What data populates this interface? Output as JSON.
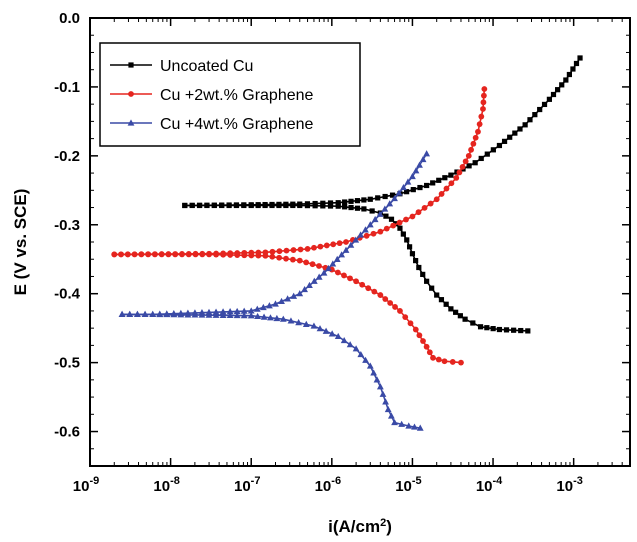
{
  "chart_data": {
    "type": "line",
    "xlabel": "i(A/cm",
    "xlabel_sup": "2",
    "xlabel_tail": ")",
    "ylabel": "E (V vs. SCE)",
    "x_scale": "log",
    "xlim": [
      1e-09,
      0.005
    ],
    "ylim": [
      -0.65,
      0.0
    ],
    "x_ticks": [
      {
        "value": 1e-09,
        "base": "10",
        "exp": "-9"
      },
      {
        "value": 1e-08,
        "base": "10",
        "exp": "-8"
      },
      {
        "value": 1e-07,
        "base": "10",
        "exp": "-7"
      },
      {
        "value": 1e-06,
        "base": "10",
        "exp": "-6"
      },
      {
        "value": 1e-05,
        "base": "10",
        "exp": "-5"
      },
      {
        "value": 0.0001,
        "base": "10",
        "exp": "-4"
      },
      {
        "value": 0.001,
        "base": "10",
        "exp": "-3"
      }
    ],
    "y_ticks": [
      {
        "value": 0.0,
        "label": "0.0"
      },
      {
        "value": -0.1,
        "label": "-0.1"
      },
      {
        "value": -0.2,
        "label": "-0.2"
      },
      {
        "value": -0.3,
        "label": "-0.3"
      },
      {
        "value": -0.4,
        "label": "-0.4"
      },
      {
        "value": -0.5,
        "label": "-0.5"
      },
      {
        "value": -0.6,
        "label": "-0.6"
      }
    ],
    "grid": false,
    "legend_position": "top-left",
    "series": [
      {
        "name": "Uncoated Cu",
        "color": "#000000",
        "marker": "square",
        "cathodic": [
          [
            1.5e-08,
            -0.272
          ],
          [
            1e-07,
            -0.272
          ],
          [
            4e-07,
            -0.272
          ],
          [
            1.2e-06,
            -0.273
          ],
          [
            2.5e-06,
            -0.277
          ],
          [
            4e-06,
            -0.283
          ],
          [
            5.5e-06,
            -0.292
          ],
          [
            7e-06,
            -0.305
          ],
          [
            8.5e-06,
            -0.322
          ],
          [
            1e-05,
            -0.342
          ],
          [
            1.2e-05,
            -0.362
          ],
          [
            1.5e-05,
            -0.382
          ],
          [
            2e-05,
            -0.402
          ],
          [
            3e-05,
            -0.422
          ],
          [
            4.5e-05,
            -0.437
          ],
          [
            7e-05,
            -0.448
          ],
          [
            0.00012,
            -0.452
          ],
          [
            0.00027,
            -0.454
          ]
        ],
        "anodic": [
          [
            1.5e-08,
            -0.272
          ],
          [
            1e-07,
            -0.271
          ],
          [
            4e-07,
            -0.27
          ],
          [
            1.2e-06,
            -0.268
          ],
          [
            3e-06,
            -0.263
          ],
          [
            7e-06,
            -0.255
          ],
          [
            1.5e-05,
            -0.243
          ],
          [
            3e-05,
            -0.228
          ],
          [
            6e-05,
            -0.21
          ],
          [
            0.00012,
            -0.185
          ],
          [
            0.00025,
            -0.155
          ],
          [
            0.0005,
            -0.118
          ],
          [
            0.0008,
            -0.09
          ],
          [
            0.0012,
            -0.058
          ]
        ]
      },
      {
        "name": "Cu +2wt.% Graphene",
        "color": "#e5251f",
        "marker": "circle",
        "cathodic": [
          [
            2e-09,
            -0.343
          ],
          [
            3e-08,
            -0.343
          ],
          [
            1.5e-07,
            -0.345
          ],
          [
            4e-07,
            -0.352
          ],
          [
            1e-06,
            -0.365
          ],
          [
            2e-06,
            -0.382
          ],
          [
            4e-06,
            -0.402
          ],
          [
            7e-06,
            -0.425
          ],
          [
            1.1e-05,
            -0.452
          ],
          [
            1.5e-05,
            -0.477
          ],
          [
            1.8e-05,
            -0.493
          ],
          [
            2.5e-05,
            -0.498
          ],
          [
            4e-05,
            -0.5
          ]
        ],
        "anodic": [
          [
            2e-09,
            -0.343
          ],
          [
            3e-08,
            -0.342
          ],
          [
            1.5e-07,
            -0.34
          ],
          [
            5e-07,
            -0.335
          ],
          [
            1.5e-06,
            -0.325
          ],
          [
            4e-06,
            -0.31
          ],
          [
            1e-05,
            -0.288
          ],
          [
            2e-05,
            -0.263
          ],
          [
            3.5e-05,
            -0.232
          ],
          [
            5e-05,
            -0.2
          ],
          [
            6.5e-05,
            -0.165
          ],
          [
            7.5e-05,
            -0.132
          ],
          [
            7.8e-05,
            -0.103
          ]
        ]
      },
      {
        "name": "Cu +4wt.% Graphene",
        "color": "#3a4aa6",
        "marker": "triangle",
        "cathodic": [
          [
            2.5e-09,
            -0.43
          ],
          [
            6e-09,
            -0.43
          ],
          [
            1e-07,
            -0.432
          ],
          [
            2.5e-07,
            -0.437
          ],
          [
            6e-07,
            -0.447
          ],
          [
            1.2e-06,
            -0.462
          ],
          [
            2e-06,
            -0.48
          ],
          [
            3e-06,
            -0.505
          ],
          [
            4e-06,
            -0.535
          ],
          [
            5e-06,
            -0.568
          ],
          [
            6e-06,
            -0.587
          ],
          [
            9e-06,
            -0.592
          ],
          [
            1.25e-05,
            -0.595
          ]
        ],
        "anodic": [
          [
            2.5e-09,
            -0.43
          ],
          [
            6e-09,
            -0.43
          ],
          [
            1e-07,
            -0.425
          ],
          [
            2e-07,
            -0.415
          ],
          [
            4e-07,
            -0.4
          ],
          [
            8e-07,
            -0.37
          ],
          [
            1.5e-06,
            -0.337
          ],
          [
            3e-06,
            -0.3
          ],
          [
            6e-06,
            -0.262
          ],
          [
            1e-05,
            -0.23
          ],
          [
            1.5e-05,
            -0.197
          ]
        ]
      }
    ]
  }
}
